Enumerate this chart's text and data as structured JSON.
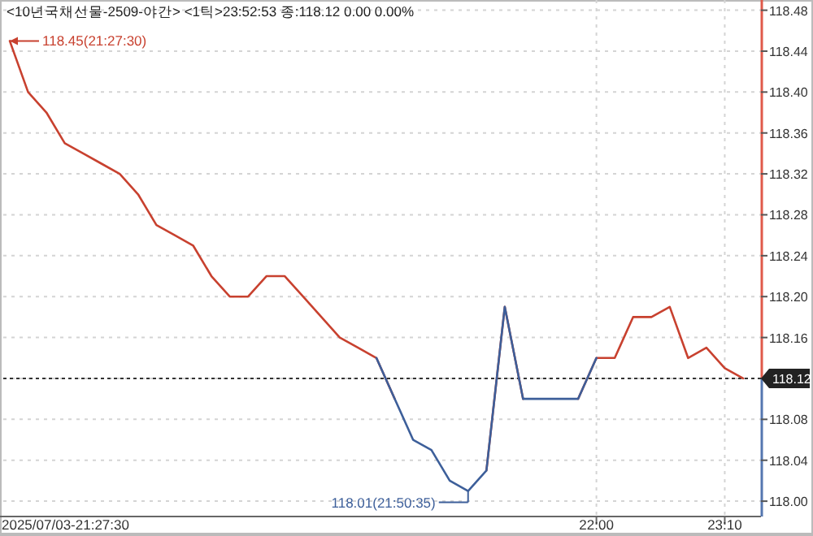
{
  "chart_data": {
    "type": "line",
    "title": "<10년국채선물-2509-야간> <1틱>23:52:53 종:118.12 0.00 0.00%",
    "categories": [
      null,
      null,
      null,
      null,
      null,
      null,
      null,
      null,
      null,
      null,
      null,
      null,
      null,
      null,
      null,
      null,
      null,
      null,
      null,
      null,
      null,
      null,
      null,
      null,
      null,
      null,
      null,
      null,
      null,
      null,
      null,
      null,
      "22:00",
      null,
      null,
      null,
      null,
      null,
      null,
      "23:10",
      null
    ],
    "series": [
      {
        "color": "#c8412f",
        "values": [
          118.45,
          118.4,
          118.38,
          118.35,
          118.34,
          118.33,
          118.32,
          118.3,
          118.27,
          118.26,
          118.25,
          118.22,
          118.2,
          118.2,
          118.22,
          118.22,
          118.2,
          118.18,
          118.16,
          118.15,
          118.14,
          118.1,
          null,
          null,
          null,
          null,
          118.03,
          118.19,
          118.1,
          null,
          null,
          118.1,
          118.14,
          118.14,
          118.18,
          118.18,
          118.19,
          118.14,
          118.15,
          118.13,
          118.12
        ]
      },
      {
        "color": "#3d5f9a",
        "values": [
          null,
          null,
          null,
          null,
          null,
          null,
          null,
          null,
          null,
          null,
          null,
          null,
          null,
          null,
          null,
          null,
          null,
          null,
          null,
          null,
          118.14,
          118.1,
          118.06,
          118.05,
          118.02,
          118.01,
          118.03,
          118.19,
          118.1,
          118.1,
          118.1,
          118.1,
          118.14,
          null,
          null,
          null,
          null,
          null,
          null,
          null,
          null
        ]
      }
    ],
    "ylim": [
      117.985,
      118.49
    ],
    "yticks": [
      {
        "value": 118.0,
        "label": "118.00"
      },
      118.04,
      118.08,
      118.12,
      118.16,
      {
        "value": 118.2,
        "label": "118.20"
      },
      118.24,
      118.28,
      118.32,
      118.36,
      {
        "value": 118.4,
        "label": "118.40"
      },
      118.44,
      118.48
    ],
    "grid": true,
    "marker": "none",
    "line_style": "solid",
    "ref_lines": [
      {
        "axis": "y",
        "value": 118.12,
        "label": "118.12",
        "color": "#333333",
        "line_style": "dotted"
      }
    ],
    "annotations": [
      "2025/07/03-21:27:30",
      "118.45(21:27:30)",
      "118.01(21:50:35)"
    ]
  }
}
